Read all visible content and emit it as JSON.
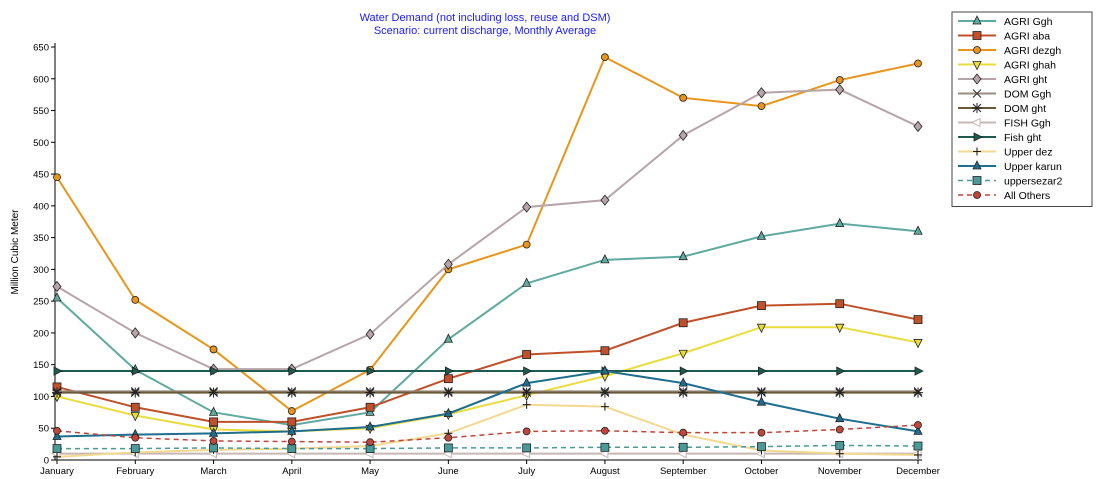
{
  "chart_data": {
    "type": "line",
    "title": "Water Demand (not including loss, reuse and DSM)",
    "subtitle": "Scenario: current discharge,  Monthly Average",
    "xlabel": "",
    "ylabel": "Million Cubic Meter",
    "ylim": [
      0,
      650
    ],
    "yticks": [
      0,
      50,
      100,
      150,
      200,
      250,
      300,
      350,
      400,
      450,
      500,
      550,
      600,
      650
    ],
    "categories": [
      "January",
      "February",
      "March",
      "April",
      "May",
      "June",
      "July",
      "August",
      "September",
      "October",
      "November",
      "December"
    ],
    "grid": false,
    "legend_position": "right",
    "series": [
      {
        "name": "AGRI Ggh",
        "color": "#5faaa0",
        "marker": "triangle-up",
        "dash": "solid",
        "values": [
          255,
          142,
          75,
          55,
          75,
          190,
          278,
          315,
          320,
          352,
          372,
          360
        ]
      },
      {
        "name": "AGRI aba",
        "color": "#c0502a",
        "marker": "square",
        "dash": "solid",
        "values": [
          115,
          83,
          60,
          60,
          83,
          128,
          166,
          172,
          216,
          243,
          246,
          221
        ]
      },
      {
        "name": "AGRI dezgh",
        "color": "#e8951a",
        "marker": "circle",
        "dash": "solid",
        "values": [
          445,
          252,
          174,
          77,
          142,
          300,
          339,
          634,
          570,
          557,
          598,
          624
        ]
      },
      {
        "name": "AGRI ghah",
        "color": "#eadc3c",
        "marker": "triangle-down",
        "dash": "solid",
        "values": [
          100,
          70,
          48,
          45,
          50,
          72,
          102,
          132,
          168,
          209,
          209,
          185
        ]
      },
      {
        "name": "AGRI ght",
        "color": "#b7a4a8",
        "marker": "diamond",
        "dash": "solid",
        "values": [
          273,
          200,
          143,
          143,
          198,
          308,
          398,
          409,
          511,
          578,
          583,
          525
        ]
      },
      {
        "name": "DOM Ggh",
        "color": "#9a8c80",
        "marker": "x",
        "dash": "solid",
        "values": [
          108,
          108,
          108,
          108,
          108,
          108,
          108,
          108,
          108,
          108,
          108,
          108
        ]
      },
      {
        "name": "DOM ght",
        "color": "#6b5a38",
        "marker": "star",
        "dash": "solid",
        "values": [
          106,
          106,
          106,
          106,
          106,
          106,
          106,
          106,
          106,
          106,
          106,
          106
        ]
      },
      {
        "name": "FISH Ggh",
        "color": "#c8b8b4",
        "marker": "triangle-left",
        "dash": "solid",
        "values": [
          10,
          10,
          10,
          10,
          10,
          10,
          10,
          10,
          10,
          10,
          10,
          10
        ]
      },
      {
        "name": "Fish ght",
        "color": "#1e5a50",
        "marker": "triangle-right",
        "dash": "solid",
        "values": [
          140,
          140,
          140,
          140,
          140,
          140,
          140,
          140,
          140,
          140,
          140,
          140
        ]
      },
      {
        "name": "Upper dez",
        "color": "#f3d890",
        "marker": "plus",
        "dash": "solid",
        "values": [
          5,
          12,
          16,
          18,
          22,
          42,
          87,
          84,
          40,
          15,
          10,
          8
        ]
      },
      {
        "name": "Upper karun",
        "color": "#1e6e8e",
        "marker": "triangle-up",
        "dash": "solid",
        "values": [
          37,
          40,
          42,
          45,
          52,
          73,
          121,
          140,
          121,
          91,
          65,
          45
        ]
      },
      {
        "name": "uppersezar2",
        "color": "#4a9a9a",
        "marker": "square",
        "dash": "dashed",
        "values": [
          18,
          18,
          19,
          18,
          18,
          19,
          19,
          20,
          20,
          21,
          23,
          22
        ]
      },
      {
        "name": "All Others",
        "color": "#c0453a",
        "marker": "circle",
        "dash": "dashed",
        "values": [
          46,
          35,
          30,
          29,
          28,
          35,
          45,
          46,
          43,
          43,
          48,
          55
        ]
      }
    ]
  }
}
